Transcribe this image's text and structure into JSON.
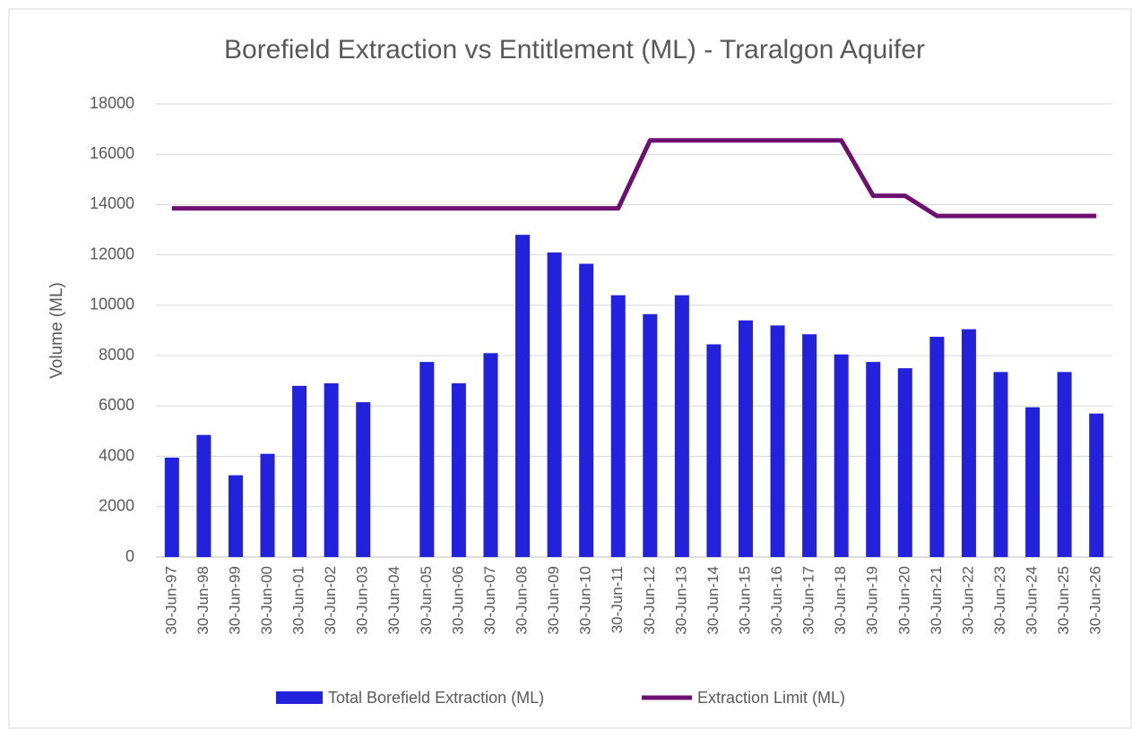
{
  "chart_data": {
    "type": "bar_line",
    "title": "Borefield Extraction vs Entitlement (ML) - Traralgon Aquifer",
    "y_label": "Volume (ML)",
    "categories": [
      "30-Jun-97",
      "30-Jun-98",
      "30-Jun-99",
      "30-Jun-00",
      "30-Jun-01",
      "30-Jun-02",
      "30-Jun-03",
      "30-Jun-04",
      "30-Jun-05",
      "30-Jun-06",
      "30-Jun-07",
      "30-Jun-08",
      "30-Jun-09",
      "30-Jun-10",
      "30-Jun-11",
      "30-Jun-12",
      "30-Jun-13",
      "30-Jun-14",
      "30-Jun-15",
      "30-Jun-16",
      "30-Jun-17",
      "30-Jun-18",
      "30-Jun-19",
      "30-Jun-20",
      "30-Jun-21",
      "30-Jun-22",
      "30-Jun-23",
      "30-Jun-24",
      "30-Jun-25",
      "30-Jun-26"
    ],
    "series": [
      {
        "name": "Total Borefield Extraction (ML)",
        "type": "bar",
        "color": "#2222dd",
        "values": [
          3950,
          4850,
          3250,
          4100,
          6800,
          6900,
          6150,
          null,
          7750,
          6900,
          8100,
          12800,
          12100,
          11650,
          10400,
          9650,
          10400,
          8450,
          9400,
          9200,
          8850,
          8050,
          7750,
          7500,
          8750,
          9050,
          7350,
          5950,
          7350,
          5700
        ]
      },
      {
        "name": "Extraction Limit (ML)",
        "type": "line",
        "color": "#6e1070",
        "values": [
          13850,
          13850,
          13850,
          13850,
          13850,
          13850,
          13850,
          13850,
          13850,
          13850,
          13850,
          13850,
          13850,
          13850,
          13850,
          16550,
          16550,
          16550,
          16550,
          16550,
          16550,
          16550,
          14350,
          14350,
          13550,
          13550,
          13550,
          13550,
          13550,
          13550
        ]
      }
    ],
    "ylim": [
      0,
      18000
    ],
    "yticks": [
      0,
      2000,
      4000,
      6000,
      8000,
      10000,
      12000,
      14000,
      16000,
      18000
    ],
    "grid": true,
    "legend": "bottom"
  }
}
